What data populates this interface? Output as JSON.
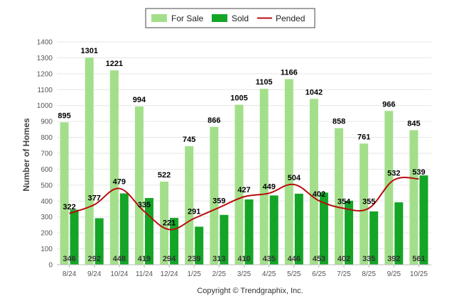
{
  "chart_data": {
    "type": "bar",
    "categories": [
      "8/24",
      "9/24",
      "10/24",
      "11/24",
      "12/24",
      "1/25",
      "2/25",
      "3/25",
      "4/25",
      "5/25",
      "6/25",
      "7/25",
      "8/25",
      "9/25",
      "10/25"
    ],
    "series": [
      {
        "name": "For Sale",
        "type": "bar",
        "color": "#a3df8a",
        "values": [
          895,
          1301,
          1221,
          994,
          522,
          745,
          866,
          1005,
          1105,
          1166,
          1042,
          858,
          761,
          966,
          845
        ]
      },
      {
        "name": "Sold",
        "type": "bar",
        "color": "#14a527",
        "values": [
          346,
          292,
          448,
          419,
          294,
          239,
          313,
          410,
          435,
          446,
          453,
          402,
          335,
          392,
          561
        ]
      },
      {
        "name": "Pended",
        "type": "line",
        "color": "#b80d0d",
        "values": [
          322,
          377,
          479,
          335,
          221,
          291,
          359,
          427,
          449,
          504,
          402,
          354,
          355,
          532,
          539
        ]
      }
    ],
    "ylabel": "Number of Homes",
    "ylim": [
      0,
      1400
    ],
    "yticks": [
      0,
      100,
      200,
      300,
      400,
      500,
      600,
      700,
      800,
      900,
      1000,
      1100,
      1200,
      1300,
      1400
    ],
    "grid": true,
    "legend": "top-center"
  },
  "footer": {
    "copyright": "Copyright © Trendgraphix, Inc."
  }
}
